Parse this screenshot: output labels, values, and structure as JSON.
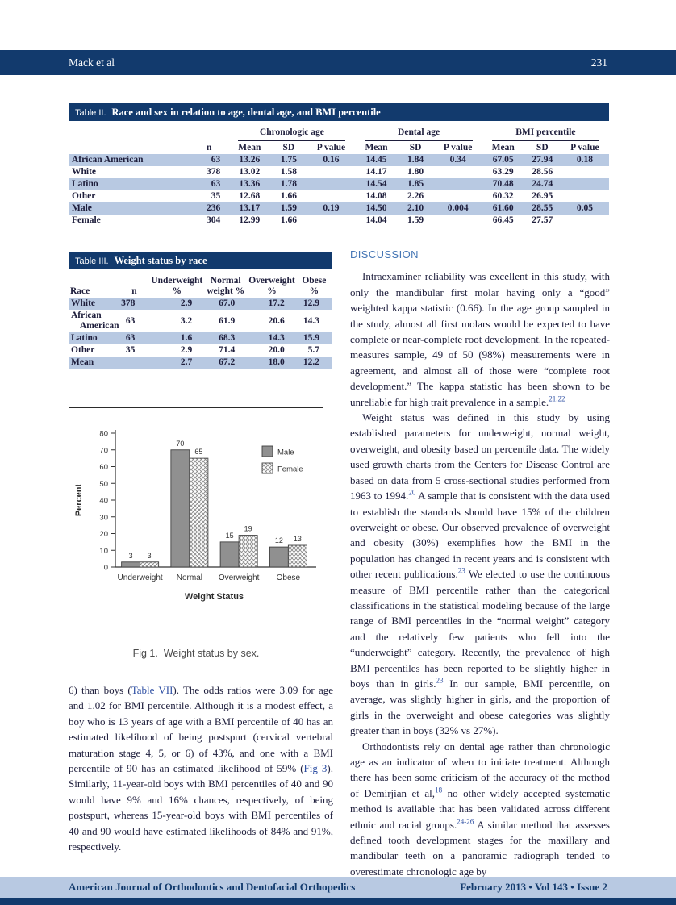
{
  "theme": {
    "navy": "#123a6d",
    "row_shade": "#b8c9e2",
    "link_blue": "#2e4fa3",
    "heading_blue": "#4576b5",
    "bar_gray": "#909090"
  },
  "header": {
    "running_author": "Mack et al",
    "page_number": "231"
  },
  "footer": {
    "journal": "American Journal of Orthodontics and Dentofacial Orthopedics",
    "issue": "February 2013 • Vol 143 • Issue 2"
  },
  "table2": {
    "title_prefix": "Table II.",
    "title": "Race and sex in relation to age, dental age, and BMI percentile",
    "group_headers": [
      "Chronologic age",
      "Dental age",
      "BMI percentile"
    ],
    "col_headers": [
      "n",
      "Mean",
      "SD",
      "P value",
      "Mean",
      "SD",
      "P value",
      "Mean",
      "SD",
      "P value"
    ],
    "rows": [
      {
        "label": "African American",
        "shaded": true,
        "values": [
          "63",
          "13.26",
          "1.75",
          "0.16",
          "14.45",
          "1.84",
          "0.34",
          "67.05",
          "27.94",
          "0.18"
        ]
      },
      {
        "label": "White",
        "shaded": false,
        "values": [
          "378",
          "13.02",
          "1.58",
          "",
          "14.17",
          "1.80",
          "",
          "63.29",
          "28.56",
          ""
        ]
      },
      {
        "label": "Latino",
        "shaded": true,
        "values": [
          "63",
          "13.36",
          "1.78",
          "",
          "14.54",
          "1.85",
          "",
          "70.48",
          "24.74",
          ""
        ]
      },
      {
        "label": "Other",
        "shaded": false,
        "values": [
          "35",
          "12.68",
          "1.66",
          "",
          "14.08",
          "2.26",
          "",
          "60.32",
          "26.95",
          ""
        ]
      },
      {
        "label": "Male",
        "shaded": true,
        "values": [
          "236",
          "13.17",
          "1.59",
          "0.19",
          "14.50",
          "2.10",
          "0.004",
          "61.60",
          "28.55",
          "0.05"
        ]
      },
      {
        "label": "Female",
        "shaded": false,
        "values": [
          "304",
          "12.99",
          "1.66",
          "",
          "14.04",
          "1.59",
          "",
          "66.45",
          "27.57",
          ""
        ]
      }
    ]
  },
  "table3": {
    "title_prefix": "Table III.",
    "title": "Weight status by race",
    "col_headers": [
      "Race",
      "n",
      "Underweight\n%",
      "Normal\nweight %",
      "Overweight\n%",
      "Obese %"
    ],
    "rows": [
      {
        "label": "White",
        "shaded": true,
        "values": [
          "378",
          "2.9",
          "67.0",
          "17.2",
          "12.9"
        ]
      },
      {
        "label": "African\nAmerican",
        "shaded": false,
        "values": [
          "63",
          "3.2",
          "61.9",
          "20.6",
          "14.3"
        ]
      },
      {
        "label": "Latino",
        "shaded": true,
        "values": [
          "63",
          "1.6",
          "68.3",
          "14.3",
          "15.9"
        ]
      },
      {
        "label": "Other",
        "shaded": false,
        "values": [
          "35",
          "2.9",
          "71.4",
          "20.0",
          "5.7"
        ]
      },
      {
        "label": "Mean",
        "shaded": true,
        "values": [
          "",
          "2.7",
          "67.2",
          "18.0",
          "12.2"
        ]
      }
    ]
  },
  "figure": {
    "label": "Fig 1.",
    "caption": "Weight status by sex."
  },
  "chart_data": {
    "type": "bar",
    "categories": [
      "Underweight",
      "Normal",
      "Overweight",
      "Obese"
    ],
    "series": [
      {
        "name": "Male",
        "values": [
          3,
          70,
          15,
          12
        ],
        "style": "solid-gray"
      },
      {
        "name": "Female",
        "values": [
          3,
          65,
          19,
          13
        ],
        "style": "crosshatch"
      }
    ],
    "title": "",
    "xlabel": "Weight Status",
    "ylabel": "Percent",
    "ylim": [
      0,
      80
    ],
    "ytick_step": 10,
    "grid": false,
    "legend_position": "upper-right",
    "value_labels": true
  },
  "left_column": {
    "paragraph": [
      {
        "t": "6) than boys ("
      },
      {
        "t": "Table VII",
        "link": true
      },
      {
        "t": "). The odds ratios were 3.09 for age and 1.02 for BMI percentile. Although it is a modest effect, a boy who is 13 years of age with a BMI percentile of 40 has an estimated likelihood of being postspurt (cervical vertebral maturation stage 4, 5, or 6) of 43%, and one with a BMI percentile of 90 has an estimated likelihood of 59% ("
      },
      {
        "t": "Fig 3",
        "link": true
      },
      {
        "t": "). Similarly, 11-year-old boys with BMI percentiles of 40 and 90 would have 9% and 16% chances, respectively, of being postspurt, whereas 15-year-old boys with BMI percentiles of 40 and 90 would have estimated likelihoods of 84% and 91%, respectively."
      }
    ]
  },
  "discussion": {
    "heading": "DISCUSSION",
    "para1": [
      {
        "t": "Intraexaminer reliability was excellent in this study, with only the mandibular first molar having only a “good” weighted kappa statistic (0.66). In the age group sampled in the study, almost all first molars would be expected to have complete or near-complete root development. In the repeated-measures sample, 49 of 50 (98%) measurements were in agreement, and almost all of those were “complete root development.” The kappa statistic has been shown to be unreliable for high trait prevalence in a sample."
      },
      {
        "t": "21,22",
        "sup": true,
        "link": true
      }
    ],
    "para2": [
      {
        "t": "Weight status was defined in this study by using established parameters for underweight, normal weight, overweight, and obesity based on percentile data. The widely used growth charts from the Centers for Disease Control are based on data from 5 cross-sectional studies performed from 1963 to 1994."
      },
      {
        "t": "20",
        "sup": true,
        "link": true
      },
      {
        "t": " A sample that is consistent with the data used to establish the standards should have 15% of the children overweight or obese. Our observed prevalence of overweight and obesity (30%) exemplifies how the BMI in the population has changed in recent years and is consistent with other recent publications."
      },
      {
        "t": "23",
        "sup": true,
        "link": true
      },
      {
        "t": " We elected to use the continuous measure of BMI percentile rather than the categorical classifications in the statistical modeling because of the large range of BMI percentiles in the “normal weight” category and the relatively few patients who fell into the “underweight” category. Recently, the prevalence of high BMI percentiles has been reported to be slightly higher in boys than in girls."
      },
      {
        "t": "23",
        "sup": true,
        "link": true
      },
      {
        "t": " In our sample, BMI percentile, on average, was slightly higher in girls, and the proportion of girls in the overweight and obese categories was slightly greater than in boys (32% vs 27%)."
      }
    ],
    "para3": [
      {
        "t": "Orthodontists rely on dental age rather than chronologic age as an indicator of when to initiate treatment. Although there has been some criticism of the accuracy of the method of Demirjian et al,"
      },
      {
        "t": "18",
        "sup": true,
        "link": true
      },
      {
        "t": " no other widely accepted systematic method is available that has been validated across different ethnic and racial groups."
      },
      {
        "t": "24-26",
        "sup": true,
        "link": true
      },
      {
        "t": " A similar method that assesses defined tooth development stages for the maxillary and mandibular teeth on a panoramic radiograph tended to overestimate chronologic age by"
      }
    ]
  }
}
